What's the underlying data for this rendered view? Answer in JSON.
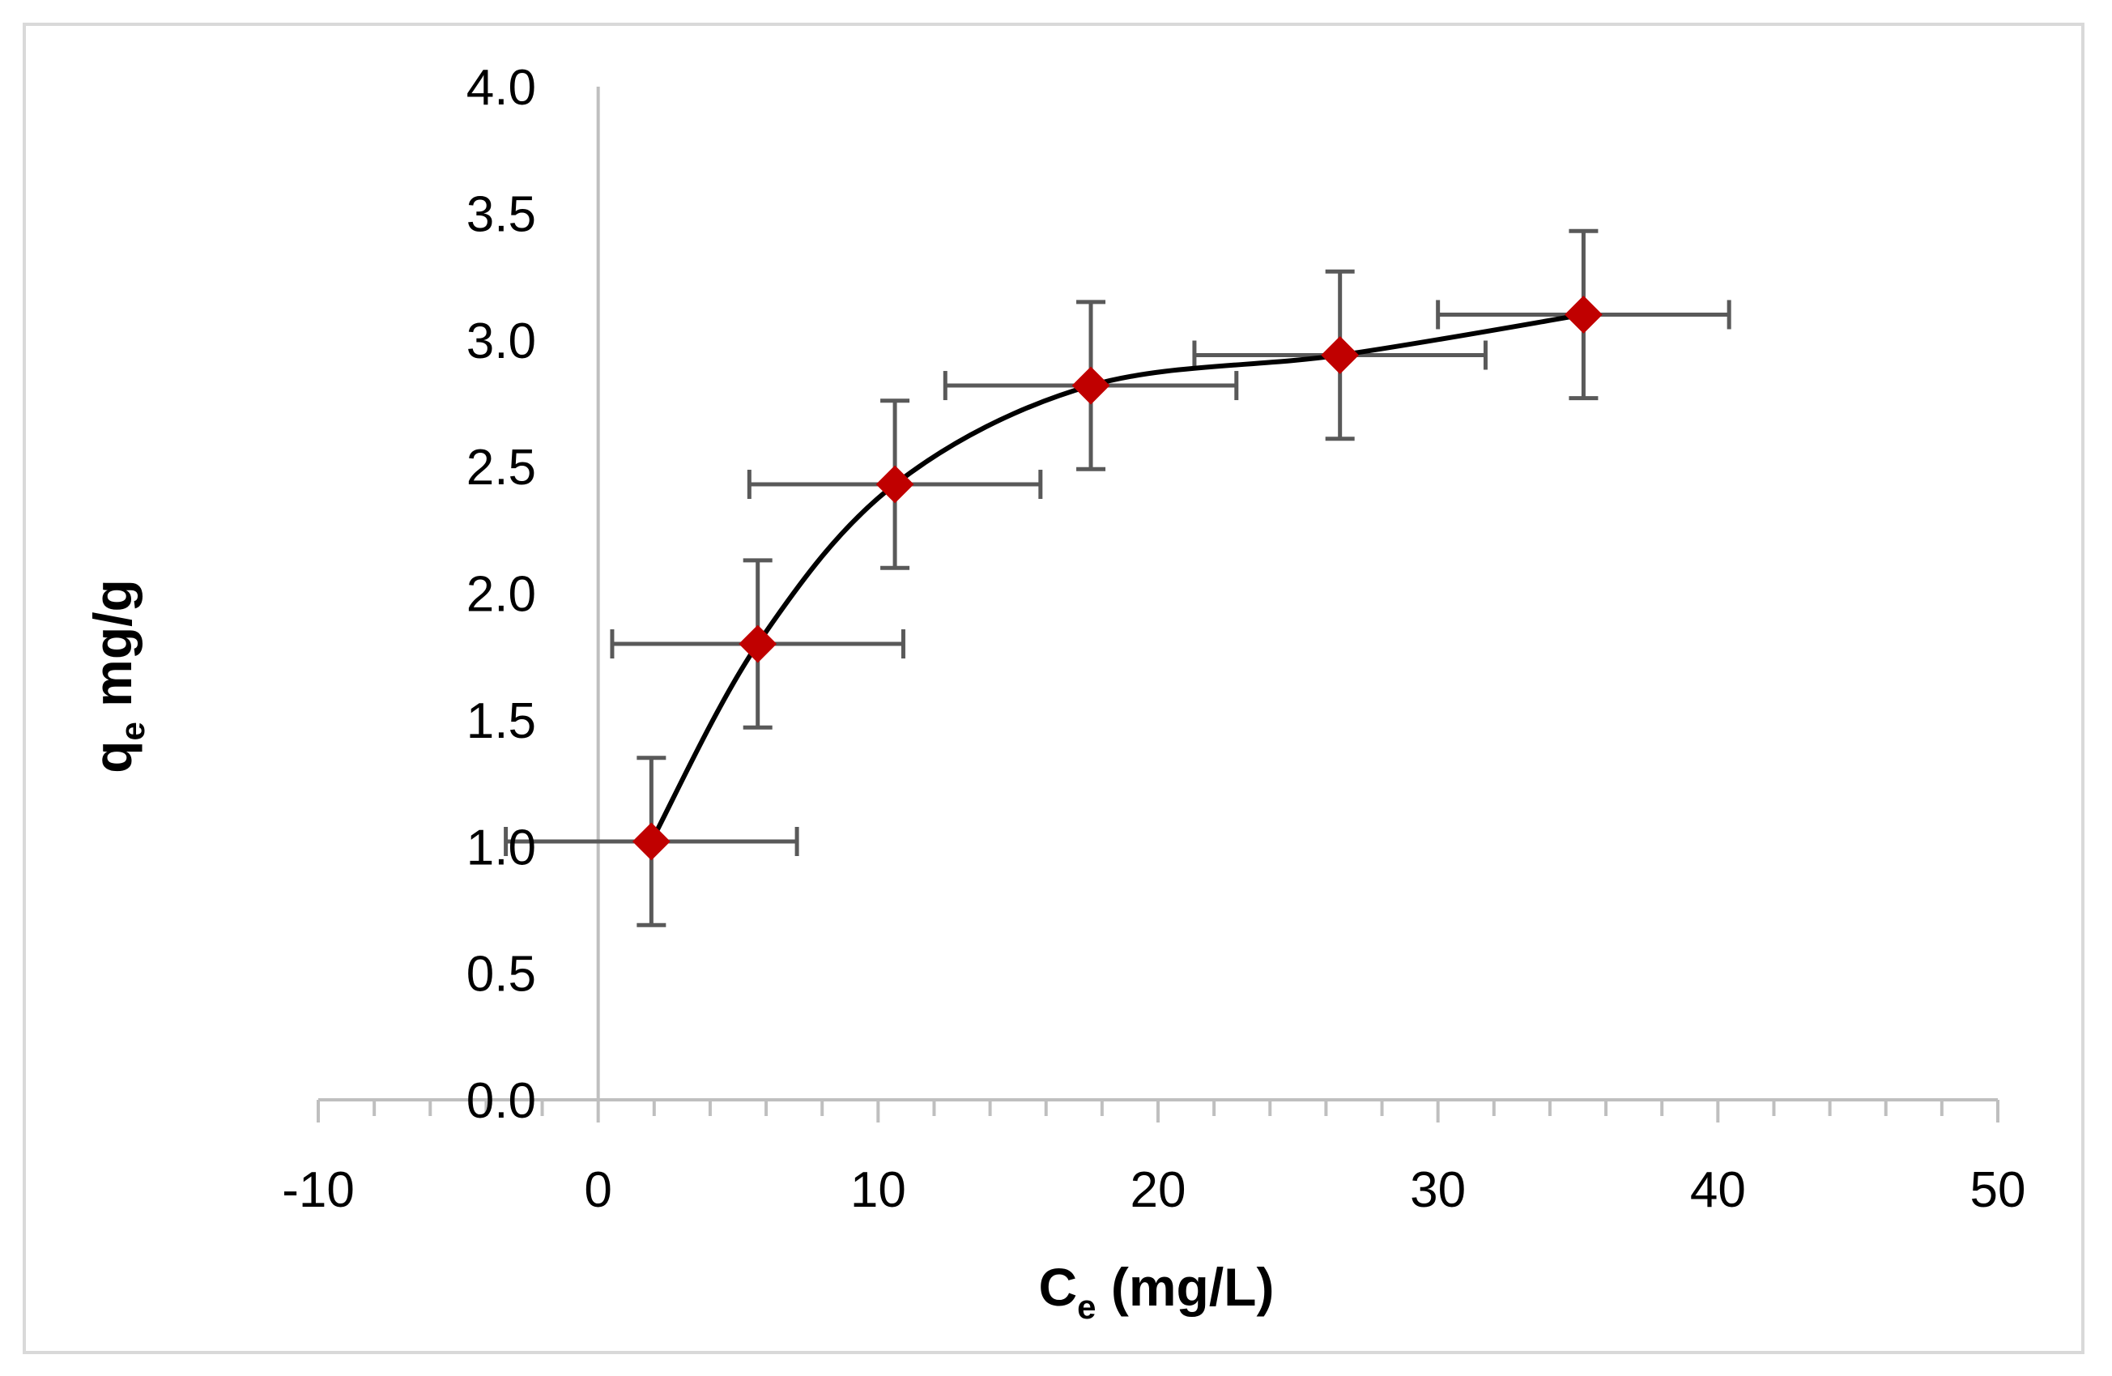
{
  "chart_data": {
    "type": "scatter",
    "title": "",
    "xlabel": {
      "main": "C",
      "sub": "e",
      "rest": " (mg/L)"
    },
    "ylabel": {
      "main": "q",
      "sub": "e",
      "rest": " mg/g"
    },
    "xlim": [
      -10,
      50
    ],
    "ylim": [
      0,
      4
    ],
    "x_ticks": [
      -10,
      0,
      10,
      20,
      30,
      40,
      50
    ],
    "x_tick_labels": [
      "-10",
      "0",
      "10",
      "20",
      "30",
      "40",
      "50"
    ],
    "x_minor_step": 2,
    "y_ticks": [
      0,
      0.5,
      1,
      1.5,
      2,
      2.5,
      3,
      3.5,
      4
    ],
    "y_tick_labels": [
      "0.0",
      "0.5",
      "1.0",
      "1.5",
      "2.0",
      "2.5",
      "3.0",
      "3.5",
      "4.0"
    ],
    "grid": false,
    "series": [
      {
        "name": "qe",
        "marker": "diamond",
        "marker_color": "#c00000",
        "line_color": "#000000",
        "smooth": true,
        "x": [
          1.9,
          5.7,
          10.6,
          17.6,
          26.5,
          35.2
        ],
        "y": [
          1.02,
          1.8,
          2.43,
          2.82,
          2.94,
          3.1
        ],
        "x_err": [
          5.2,
          5.2,
          5.2,
          5.2,
          5.2,
          5.2
        ],
        "y_err": [
          0.33,
          0.33,
          0.33,
          0.33,
          0.33,
          0.33
        ],
        "error_bar_color": "#595959"
      }
    ]
  }
}
